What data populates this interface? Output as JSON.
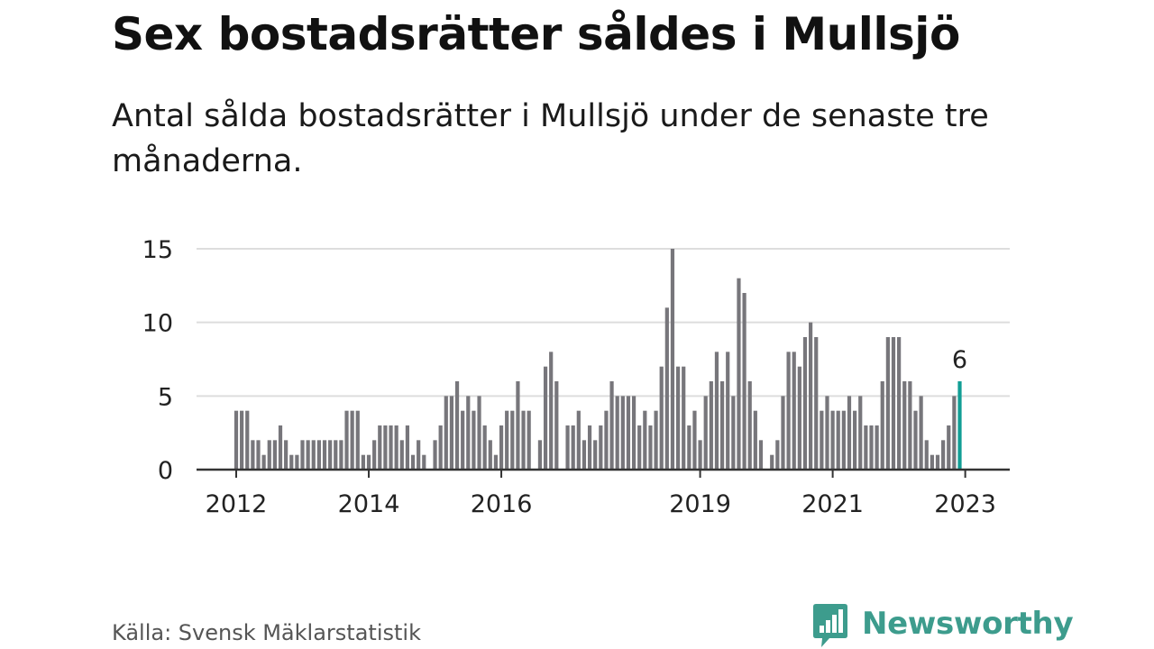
{
  "header": {
    "title": "Sex bostadsrätter såldes i Mullsjö",
    "subtitle": "Antal sålda bostadsrätter i Mullsjö under de senaste tre månaderna."
  },
  "footer": {
    "source": "Källa: Svensk Mäklarstatistik",
    "brand": "Newsworthy"
  },
  "colors": {
    "bar": "#77767b",
    "highlight": "#119e95",
    "gridline": "#dddddd",
    "axis": "#333333",
    "brand": "#3d9c8d"
  },
  "chart_data": {
    "type": "bar",
    "title": "Sex bostadsrätter såldes i Mullsjö",
    "xlabel": "",
    "ylabel": "",
    "ylim": [
      0,
      15
    ],
    "yticks": [
      0,
      5,
      10,
      15
    ],
    "grid": true,
    "legend": "none",
    "start": "2012-01",
    "xtick_labels": [
      {
        "label": "2012",
        "index": 0
      },
      {
        "label": "2014",
        "index": 24
      },
      {
        "label": "2016",
        "index": 48
      },
      {
        "label": "2019",
        "index": 84
      },
      {
        "label": "2021",
        "index": 108
      },
      {
        "label": "2023",
        "index": 132
      }
    ],
    "values": [
      4,
      4,
      4,
      2,
      2,
      1,
      2,
      2,
      3,
      2,
      1,
      1,
      2,
      2,
      2,
      2,
      2,
      2,
      2,
      2,
      4,
      4,
      4,
      1,
      1,
      2,
      3,
      3,
      3,
      3,
      2,
      3,
      1,
      2,
      1,
      0,
      2,
      3,
      5,
      5,
      6,
      4,
      5,
      4,
      5,
      3,
      2,
      1,
      3,
      4,
      4,
      6,
      4,
      4,
      0,
      2,
      7,
      8,
      6,
      0,
      3,
      3,
      4,
      2,
      3,
      2,
      3,
      4,
      6,
      5,
      5,
      5,
      5,
      3,
      4,
      3,
      4,
      7,
      11,
      15,
      7,
      7,
      3,
      4,
      2,
      5,
      6,
      8,
      6,
      8,
      5,
      13,
      12,
      6,
      4,
      2,
      0,
      1,
      2,
      5,
      8,
      8,
      7,
      9,
      10,
      9,
      4,
      5,
      4,
      4,
      4,
      5,
      4,
      5,
      3,
      3,
      3,
      6,
      9,
      9,
      9,
      6,
      6,
      4,
      5,
      2,
      1,
      1,
      2,
      3,
      5,
      6
    ],
    "highlight": {
      "index": 131,
      "label": "6"
    }
  }
}
